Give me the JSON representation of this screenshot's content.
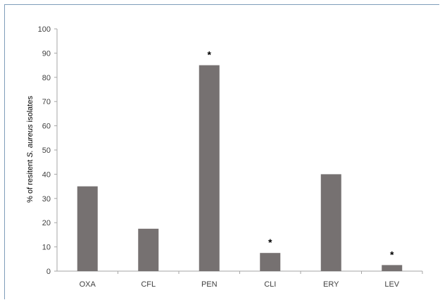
{
  "chart_data": {
    "type": "bar",
    "title": "",
    "xlabel": "",
    "ylabel_parts": [
      "% of resitent ",
      "S. aureus",
      " isolates"
    ],
    "categories": [
      "OXA",
      "CFL",
      "PEN",
      "CLI",
      "ERY",
      "LEV"
    ],
    "values": [
      35,
      17.5,
      85,
      7.5,
      40,
      2.5
    ],
    "annotations": [
      "",
      "",
      "*",
      "*",
      "",
      "*"
    ],
    "ylim": [
      0,
      100
    ],
    "yticks": [
      "0",
      "10",
      "20",
      "30",
      "40",
      "50",
      "60",
      "70",
      "80",
      "90",
      "100"
    ],
    "grid": false,
    "legend": "none",
    "bar_color": "#767171",
    "axis_color": "#a6a6a6"
  }
}
